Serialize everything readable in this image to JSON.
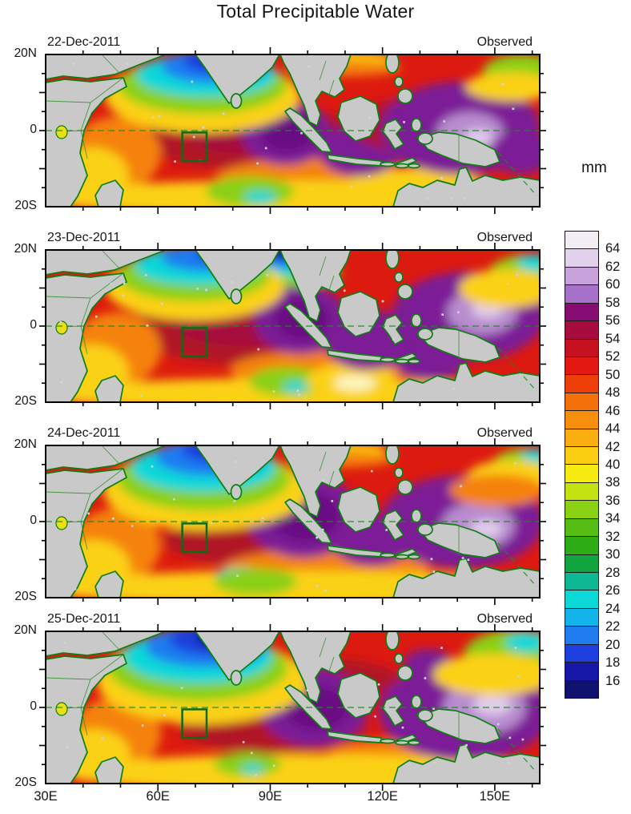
{
  "title": "Total Precipitable Water",
  "colorbar": {
    "title": "mm"
  },
  "chart_data": {
    "type": "heatmap",
    "title": "Total Precipitable Water",
    "units": "mm",
    "layout": "4 stacked longitude-latitude map panels, shared colorbar at right",
    "lon_range_deg_east": [
      30,
      162
    ],
    "lat_range_deg_north": [
      -20,
      20
    ],
    "x_tick_labels": [
      "30E",
      "60E",
      "90E",
      "120E",
      "150E"
    ],
    "x_tick_lons": [
      30,
      60,
      90,
      120,
      150
    ],
    "y_tick_labels": [
      "20N",
      "0",
      "20S"
    ],
    "y_tick_lats": [
      20,
      0,
      -20
    ],
    "equator_line": "dashed green at 0 latitude",
    "study_box": {
      "lon": [
        66.5,
        73.0
      ],
      "lat": [
        -8.0,
        -0.5
      ],
      "style": "dark-green rectangle"
    },
    "panels": [
      {
        "date": "22-Dec-2011",
        "tag": "Observed"
      },
      {
        "date": "23-Dec-2011",
        "tag": "Observed"
      },
      {
        "date": "24-Dec-2011",
        "tag": "Observed"
      },
      {
        "date": "25-Dec-2011",
        "tag": "Observed"
      }
    ],
    "colorbar": {
      "title": "mm",
      "tick_labels": [
        "64",
        "62",
        "60",
        "58",
        "56",
        "54",
        "52",
        "50",
        "48",
        "46",
        "44",
        "42",
        "40",
        "38",
        "36",
        "34",
        "32",
        "30",
        "28",
        "26",
        "24",
        "22",
        "20",
        "18",
        "16"
      ],
      "segments_bottom_to_top": [
        {
          "band": "<16",
          "color": "#10106e"
        },
        {
          "band": "16-18",
          "color": "#1717a8"
        },
        {
          "band": "18-20",
          "color": "#1d3fdd"
        },
        {
          "band": "20-22",
          "color": "#1f7df0"
        },
        {
          "band": "22-24",
          "color": "#12b4ea"
        },
        {
          "band": "24-26",
          "color": "#0cd8d8"
        },
        {
          "band": "26-28",
          "color": "#0db892"
        },
        {
          "band": "28-30",
          "color": "#12a43f"
        },
        {
          "band": "30-32",
          "color": "#2dac15"
        },
        {
          "band": "32-34",
          "color": "#55bd13"
        },
        {
          "band": "34-36",
          "color": "#8ad013"
        },
        {
          "band": "36-38",
          "color": "#c4e112"
        },
        {
          "band": "38-40",
          "color": "#f7ec12"
        },
        {
          "band": "40-42",
          "color": "#fcce11"
        },
        {
          "band": "42-44",
          "color": "#faae10"
        },
        {
          "band": "44-46",
          "color": "#f78f0e"
        },
        {
          "band": "46-48",
          "color": "#f4700a"
        },
        {
          "band": "48-50",
          "color": "#ef3f08"
        },
        {
          "band": "50-52",
          "color": "#e31812"
        },
        {
          "band": "52-54",
          "color": "#c61120"
        },
        {
          "band": "54-56",
          "color": "#a60d3e"
        },
        {
          "band": "56-58",
          "color": "#870c74"
        },
        {
          "band": "58-60",
          "color": "#a671c8"
        },
        {
          "band": "60-62",
          "color": "#c8a3db"
        },
        {
          "band": "62-64",
          "color": "#e2d2ec"
        },
        {
          "band": ">64",
          "color": "#f3eef6"
        }
      ]
    },
    "field_summary": "Dry (blue) air over Arabian Sea NW corner; broad moist red band across tropical Indian Ocean; very moist purple/lavender (>52 mm) over eastern Indian Ocean and Maritime Continent; yellow-orange drier band along 15-20S; gray land with green coastlines",
    "field_blobs": {
      "panel0": [
        [
          "#b11226",
          255,
          102,
          135,
          42
        ],
        [
          "#a60d3e",
          268,
          98,
          92,
          27
        ],
        [
          "#f5820a",
          88,
          124,
          56,
          46
        ],
        [
          "#fbd112",
          58,
          152,
          46,
          36
        ],
        [
          "#f5820a",
          330,
          156,
          120,
          26
        ],
        [
          "#fbd112",
          300,
          179,
          305,
          22
        ],
        [
          "#fbd112",
          462,
          162,
          85,
          20
        ],
        [
          "#8ad013",
          255,
          171,
          55,
          19
        ],
        [
          "#0cd8d8",
          268,
          178,
          20,
          8
        ],
        [
          "#7b1b96",
          300,
          98,
          56,
          40
        ],
        [
          "#6a0a84",
          302,
          98,
          33,
          24
        ],
        [
          "#7b1b96",
          392,
          120,
          52,
          32
        ],
        [
          "#b11226",
          452,
          88,
          70,
          33
        ],
        [
          "#7b1b96",
          518,
          92,
          100,
          58
        ],
        [
          "#b88ccf",
          530,
          98,
          42,
          26
        ],
        [
          "#e0cdeb",
          540,
          103,
          18,
          10
        ],
        [
          "#7b1b96",
          594,
          122,
          38,
          28
        ],
        [
          "#fbd112",
          372,
          6,
          62,
          10
        ],
        [
          "#f5820a",
          372,
          17,
          72,
          10
        ],
        [
          "#8ad013",
          594,
          22,
          48,
          22
        ],
        [
          "#fbd112",
          582,
          40,
          58,
          18
        ],
        [
          "#fbd112",
          196,
          52,
          122,
          46
        ],
        [
          "#8ad013",
          196,
          38,
          105,
          36
        ],
        [
          "#0cd8d8",
          200,
          26,
          87,
          27
        ],
        [
          "#1f7df0",
          212,
          15,
          68,
          21
        ],
        [
          "#1d3fdd",
          222,
          8,
          50,
          16
        ],
        [
          "#10106e",
          228,
          3,
          26,
          10
        ]
      ],
      "panel1": [
        [
          "#b11226",
          248,
          95,
          142,
          48
        ],
        [
          "#a60d3e",
          258,
          90,
          100,
          30
        ],
        [
          "#f5820a",
          88,
          124,
          56,
          46
        ],
        [
          "#fbd112",
          58,
          153,
          46,
          35
        ],
        [
          "#f5820a",
          340,
          150,
          110,
          24
        ],
        [
          "#fbd112",
          300,
          180,
          305,
          20
        ],
        [
          "#8ad013",
          302,
          164,
          48,
          18
        ],
        [
          "#0cd8d8",
          312,
          171,
          16,
          7
        ],
        [
          "#fbd112",
          382,
          163,
          56,
          22
        ],
        [
          "#fdf6c0",
          386,
          166,
          26,
          10
        ],
        [
          "#7b1b96",
          318,
          86,
          58,
          44
        ],
        [
          "#6a0a84",
          320,
          86,
          34,
          26
        ],
        [
          "#7b1b96",
          402,
          112,
          56,
          38
        ],
        [
          "#7b1b96",
          528,
          82,
          96,
          55
        ],
        [
          "#b88ccf",
          545,
          78,
          44,
          28
        ],
        [
          "#e0cdeb",
          552,
          74,
          20,
          11
        ],
        [
          "#7b1b96",
          480,
          140,
          45,
          22
        ],
        [
          "#8ad013",
          306,
          28,
          62,
          18
        ],
        [
          "#0cd8d8",
          304,
          17,
          50,
          15
        ],
        [
          "#1f7df0",
          302,
          9,
          40,
          13
        ],
        [
          "#1d3fdd",
          301,
          4,
          30,
          10
        ],
        [
          "#10106e",
          300,
          1,
          20,
          7
        ],
        [
          "#fbd112",
          186,
          46,
          112,
          42
        ],
        [
          "#8ad013",
          185,
          32,
          95,
          32
        ],
        [
          "#0cd8d8",
          189,
          20,
          78,
          24
        ],
        [
          "#1f7df0",
          202,
          10,
          58,
          17
        ],
        [
          "#1d3fdd",
          225,
          4,
          38,
          12
        ],
        [
          "#8ad013",
          602,
          32,
          50,
          26
        ],
        [
          "#0cd8d8",
          610,
          16,
          20,
          10
        ],
        [
          "#fbd112",
          576,
          48,
          60,
          24
        ]
      ],
      "panel2": [
        [
          "#b11226",
          262,
          80,
          112,
          34
        ],
        [
          "#b11226",
          250,
          118,
          102,
          30
        ],
        [
          "#f5820a",
          88,
          125,
          56,
          46
        ],
        [
          "#fbd112",
          60,
          153,
          46,
          35
        ],
        [
          "#f5820a",
          350,
          155,
          130,
          26
        ],
        [
          "#fbd112",
          308,
          178,
          310,
          22
        ],
        [
          "#0cd8d8",
          246,
          161,
          32,
          9
        ],
        [
          "#8ad013",
          262,
          170,
          52,
          17
        ],
        [
          "#7b1b96",
          322,
          88,
          72,
          52
        ],
        [
          "#6a0a84",
          324,
          88,
          44,
          32
        ],
        [
          "#7b1b96",
          408,
          118,
          52,
          32
        ],
        [
          "#7b1b96",
          520,
          95,
          102,
          58
        ],
        [
          "#b88ccf",
          540,
          100,
          46,
          29
        ],
        [
          "#e0cdeb",
          550,
          104,
          20,
          11
        ],
        [
          "#fbd112",
          370,
          6,
          56,
          10
        ],
        [
          "#f5820a",
          370,
          17,
          66,
          10
        ],
        [
          "#fbd112",
          200,
          56,
          128,
          50
        ],
        [
          "#8ad013",
          197,
          41,
          108,
          40
        ],
        [
          "#0cd8d8",
          197,
          28,
          90,
          30
        ],
        [
          "#1f7df0",
          207,
          15,
          70,
          23
        ],
        [
          "#1d3fdd",
          220,
          6,
          50,
          16
        ],
        [
          "#10106e",
          248,
          3,
          26,
          10
        ],
        [
          "#8ad013",
          600,
          24,
          42,
          20
        ],
        [
          "#0cd8d8",
          612,
          13,
          17,
          8
        ],
        [
          "#fbd112",
          582,
          40,
          56,
          22
        ],
        [
          "#f5820a",
          564,
          56,
          60,
          20
        ]
      ],
      "panel3": [
        [
          "#b11226",
          285,
          118,
          118,
          34
        ],
        [
          "#b11226",
          350,
          62,
          95,
          28
        ],
        [
          "#f5820a",
          88,
          128,
          56,
          45
        ],
        [
          "#fbd112",
          60,
          155,
          46,
          33
        ],
        [
          "#f5820a",
          430,
          158,
          82,
          22
        ],
        [
          "#fbd112",
          330,
          177,
          300,
          24
        ],
        [
          "#8ad013",
          252,
          166,
          42,
          15
        ],
        [
          "#0cd8d8",
          258,
          172,
          14,
          6
        ],
        [
          "#7b1b96",
          335,
          95,
          68,
          48
        ],
        [
          "#6a0a84",
          338,
          96,
          40,
          28
        ],
        [
          "#7b1b96",
          524,
          100,
          108,
          62
        ],
        [
          "#b88ccf",
          548,
          95,
          52,
          33
        ],
        [
          "#e0cdeb",
          558,
          92,
          24,
          13
        ],
        [
          "#7b1b96",
          478,
          42,
          32,
          20
        ],
        [
          "#fbd112",
          196,
          62,
          132,
          54
        ],
        [
          "#8ad013",
          190,
          45,
          112,
          42
        ],
        [
          "#0cd8d8",
          190,
          32,
          93,
          33
        ],
        [
          "#1f7df0",
          200,
          19,
          76,
          26
        ],
        [
          "#1d3fdd",
          212,
          10,
          58,
          20
        ],
        [
          "#10106e",
          226,
          7,
          38,
          14
        ],
        [
          "#8ad013",
          588,
          30,
          66,
          32
        ],
        [
          "#0cd8d8",
          600,
          14,
          26,
          12
        ],
        [
          "#fbd112",
          560,
          54,
          76,
          26
        ]
      ]
    },
    "base_field_color": "#dd1a10",
    "land_color": "#c9c9c9",
    "coast_color": "#0e7d12"
  }
}
